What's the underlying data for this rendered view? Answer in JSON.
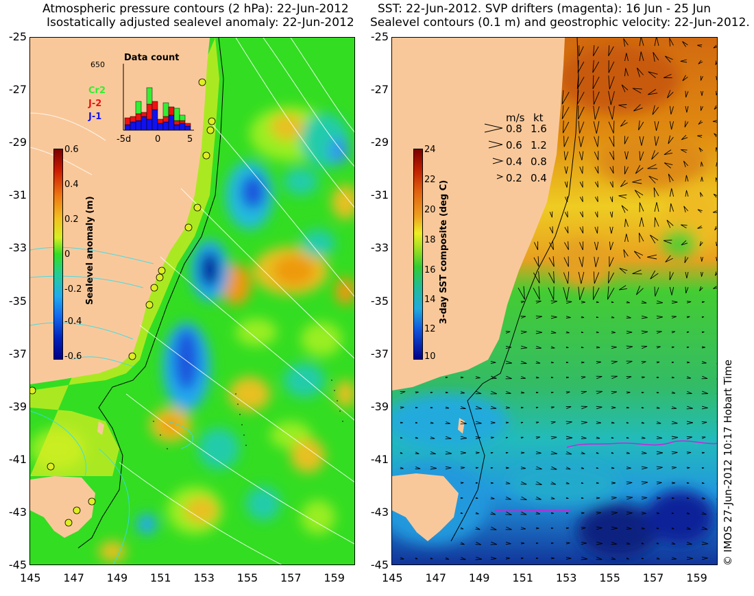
{
  "left_panel": {
    "title_line1": "Atmospheric pressure contours (2 hPa): 22-Jun-2012",
    "title_line2": "Isostatically adjusted sealevel anomaly: 22-Jun-2012",
    "colorbar": {
      "label": "Sealevel anomaly (m)",
      "ticks": [
        "0.6",
        "0.4",
        "0.2",
        "0",
        "-0.2",
        "-0.4",
        "-0.6"
      ]
    },
    "inset": {
      "title": "Data count",
      "ymax_label": "650",
      "legend": [
        {
          "name": "Cr2",
          "color": "#33ee33"
        },
        {
          "name": "J-2",
          "color": "#ee1111"
        },
        {
          "name": "J-1",
          "color": "#1111ee"
        }
      ],
      "xticks": [
        "-5d",
        "0",
        "5"
      ]
    },
    "pressure_label": "Atmospheric pressure contours (2 hPa)"
  },
  "right_panel": {
    "title_line1": "SST: 22-Jun-2012. SVP drifters (magenta): 16 Jun - 25 Jun",
    "title_line2": "Sealevel contours (0.1 m) and geostrophic velocity: 22-Jun-2012.",
    "colorbar": {
      "label": "3-day SST composite (deg C)",
      "ticks": [
        "24",
        "22",
        "20",
        "18",
        "16",
        "14",
        "12",
        "10"
      ]
    },
    "velocity_legend": {
      "header_ms": "m/s",
      "header_kt": "kt",
      "rows": [
        {
          "ms": "0.8",
          "kt": "1.6"
        },
        {
          "ms": "0.6",
          "kt": "1.2"
        },
        {
          "ms": "0.4",
          "kt": "0.8"
        },
        {
          "ms": "0.2",
          "kt": "0.4"
        }
      ]
    }
  },
  "axes": {
    "lat_ticks": [
      "-25",
      "-27",
      "-29",
      "-31",
      "-33",
      "-35",
      "-37",
      "-39",
      "-41",
      "-43",
      "-45"
    ],
    "lon_ticks": [
      "145",
      "147",
      "149",
      "151",
      "153",
      "155",
      "157",
      "159"
    ]
  },
  "credit": "© IMOS 27-Jun-2012 10:17 Hobart Time",
  "colors": {
    "land": "#f9c89a",
    "ocean_green": "#33dd22",
    "sst_warm": "#e08a10",
    "sst_cool": "#2e9fdf"
  }
}
